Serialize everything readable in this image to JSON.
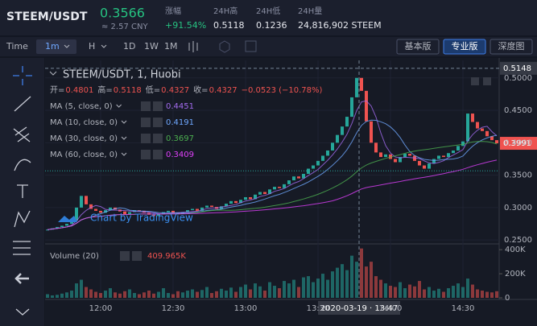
{
  "header": {
    "symbol": "STEEM/USDT",
    "price": 0.3566,
    "cny": "≈ 2.57 CNY",
    "change_label": "涨幅",
    "change": "+91.54%",
    "high_label": "24H高",
    "high": 0.5118,
    "low_label": "24H低",
    "low": 0.1236,
    "vol_label": "24H量",
    "volume": "24,816,902 STEEM"
  },
  "toolbar": {
    "time_label": "Time",
    "intervals": [
      "1m",
      "H",
      "1D",
      "1W",
      "1M"
    ],
    "versions": [
      "基本版",
      "专业版",
      "深度图"
    ]
  },
  "chart_data": {
    "type": "candlestick",
    "title": "STEEM/USDT, 1, Huobi",
    "ohlc": [
      {
        "label": "开=",
        "value": 0.4801
      },
      {
        "label": "高=",
        "value": 0.5118
      },
      {
        "label": "低=",
        "value": 0.4327
      },
      {
        "label": "收=",
        "value": 0.4327
      }
    ],
    "change": "−0.0523 (−10.78%)",
    "ma": [
      {
        "name": "MA (5, close, 0)",
        "value": 0.4451,
        "color": "#a46cf0",
        "window": 5
      },
      {
        "name": "MA (10, close, 0)",
        "value": 0.4191,
        "color": "#6fa8ff",
        "window": 10
      },
      {
        "name": "MA (30, close, 0)",
        "value": 0.3697,
        "color": "#4caf50",
        "window": 30
      },
      {
        "name": "MA (60, close, 0)",
        "value": 0.3409,
        "color": "#e040fb",
        "window": 60
      }
    ],
    "watermark": "Chart by TradingView",
    "x": [
      698,
      700,
      702,
      704,
      706,
      708,
      710,
      712,
      714,
      716,
      718,
      720,
      722,
      724,
      726,
      728,
      730,
      732,
      734,
      736,
      738,
      740,
      742,
      744,
      746,
      748,
      750,
      752,
      754,
      756,
      758,
      760,
      762,
      764,
      766,
      768,
      770,
      772,
      774,
      776,
      778,
      780,
      782,
      784,
      786,
      788,
      790,
      792,
      794,
      796,
      798,
      800,
      802,
      804,
      806,
      808,
      810,
      812,
      814,
      816,
      818,
      820,
      822,
      824,
      826,
      828,
      830,
      832,
      834,
      836,
      838,
      840,
      842,
      844,
      846,
      848,
      850,
      852,
      854,
      856,
      858,
      860,
      862,
      864,
      866,
      868,
      870,
      872,
      874,
      876,
      878,
      880,
      882,
      884
    ],
    "close": [
      0.266,
      0.268,
      0.27,
      0.272,
      0.275,
      0.28,
      0.3,
      0.318,
      0.305,
      0.298,
      0.295,
      0.292,
      0.296,
      0.3,
      0.297,
      0.294,
      0.29,
      0.293,
      0.296,
      0.295,
      0.292,
      0.289,
      0.287,
      0.29,
      0.293,
      0.295,
      0.292,
      0.29,
      0.293,
      0.296,
      0.298,
      0.295,
      0.3,
      0.303,
      0.301,
      0.298,
      0.302,
      0.306,
      0.31,
      0.307,
      0.312,
      0.316,
      0.313,
      0.32,
      0.324,
      0.321,
      0.328,
      0.332,
      0.33,
      0.336,
      0.342,
      0.348,
      0.345,
      0.352,
      0.36,
      0.365,
      0.372,
      0.38,
      0.388,
      0.4,
      0.412,
      0.425,
      0.44,
      0.47,
      0.5,
      0.48,
      0.433,
      0.4,
      0.385,
      0.378,
      0.382,
      0.375,
      0.37,
      0.378,
      0.383,
      0.38,
      0.372,
      0.365,
      0.36,
      0.368,
      0.375,
      0.38,
      0.378,
      0.384,
      0.388,
      0.395,
      0.402,
      0.445,
      0.432,
      0.422,
      0.418,
      0.41,
      0.404,
      0.3991
    ],
    "volume": [
      30000,
      20000,
      25000,
      35000,
      45000,
      60000,
      120000,
      150000,
      90000,
      70000,
      50000,
      40000,
      60000,
      80000,
      45000,
      35000,
      55000,
      70000,
      40000,
      30000,
      45000,
      60000,
      35000,
      50000,
      80000,
      40000,
      30000,
      55000,
      45000,
      60000,
      70000,
      50000,
      65000,
      90000,
      40000,
      55000,
      75000,
      60000,
      85000,
      50000,
      90000,
      110000,
      70000,
      120000,
      95000,
      60000,
      130000,
      100000,
      80000,
      140000,
      120000,
      150000,
      90000,
      170000,
      180000,
      130000,
      160000,
      200000,
      150000,
      220000,
      250000,
      280000,
      230000,
      350000,
      300000,
      409965,
      260000,
      300000,
      180000,
      150000,
      120000,
      100000,
      90000,
      130000,
      80000,
      110000,
      95000,
      140000,
      70000,
      90000,
      60000,
      75000,
      50000,
      80000,
      100000,
      120000,
      90000,
      160000,
      110000,
      70000,
      60000,
      50000,
      45000,
      55000
    ],
    "volume_title": "Volume (20)",
    "volume_value_label": "409.965K",
    "up_color": "#26a69a",
    "down_color": "#ef5350",
    "xlim": [
      697,
      885
    ],
    "xticks": [
      {
        "value": 720,
        "label": "12:00"
      },
      {
        "value": 750,
        "label": "12:30"
      },
      {
        "value": 780,
        "label": "13:00"
      },
      {
        "value": 810,
        "label": "13:30"
      },
      {
        "value": 840,
        "label": "14:00"
      },
      {
        "value": 870,
        "label": "14:30"
      }
    ],
    "ylim": [
      0.244,
      0.527
    ],
    "yticks": [
      {
        "value": 0.25,
        "label": "0.2500"
      },
      {
        "value": 0.3,
        "label": "0.3000"
      },
      {
        "value": 0.35,
        "label": "0.3500"
      },
      {
        "value": 0.4,
        "label": "0.4000"
      },
      {
        "value": 0.45,
        "label": "0.4500"
      },
      {
        "value": 0.5,
        "label": "0.5000"
      }
    ],
    "vlim": [
      0,
      448000
    ],
    "vticks": [
      0,
      {
        "value": 200000,
        "label": "200K"
      },
      {
        "value": 400000,
        "label": "400K"
      }
    ],
    "crosshair": {
      "x": 827,
      "label": "2020-03-19 · 13:47",
      "price": 0.5148
    }
  }
}
